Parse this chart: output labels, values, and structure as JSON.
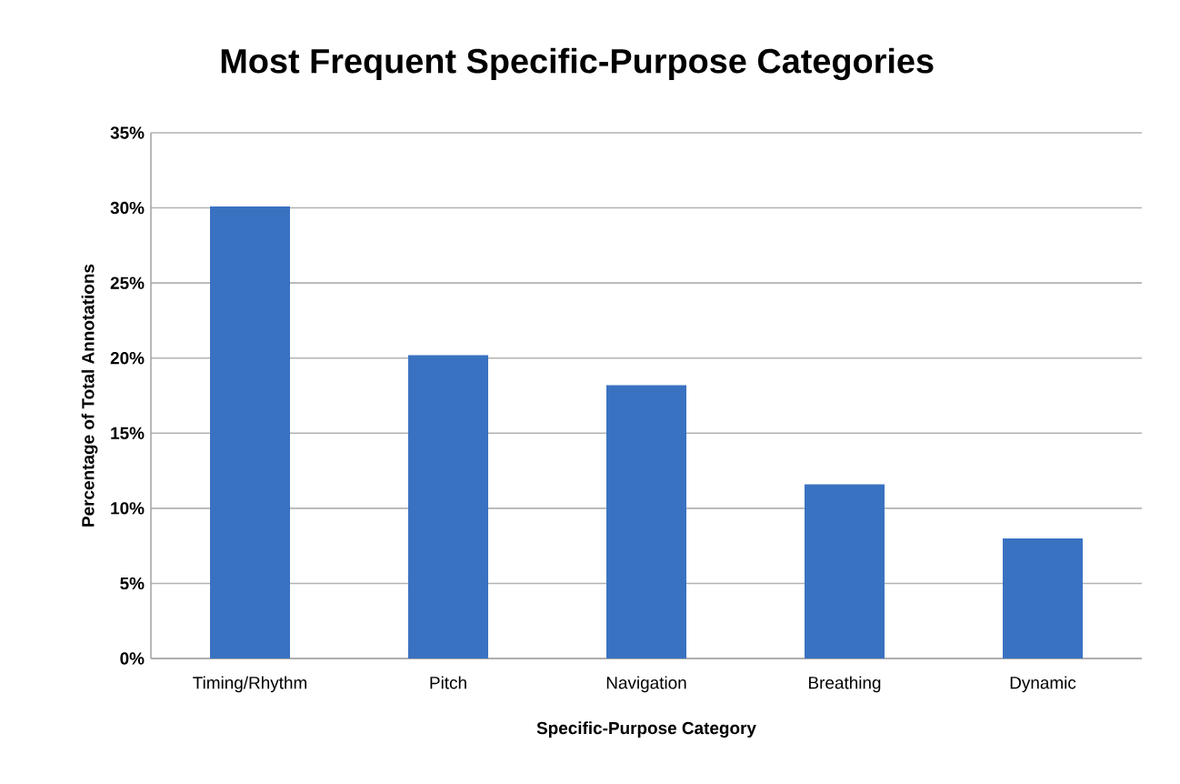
{
  "chart_data": {
    "type": "bar",
    "title": "Most Frequent Specific-Purpose Categories",
    "xlabel": "Specific-Purpose Category",
    "ylabel": "Percentage of Total Annotations",
    "categories": [
      "Timing/Rhythm",
      "Pitch",
      "Navigation",
      "Breathing",
      "Dynamic"
    ],
    "values": [
      30.1,
      20.2,
      18.2,
      11.6,
      8.0
    ],
    "color": "#3a72c2",
    "ylim": [
      0,
      35
    ],
    "yticks": [
      {
        "value": 0,
        "label": "0%"
      },
      {
        "value": 5,
        "label": "5%"
      },
      {
        "value": 10,
        "label": "10%"
      },
      {
        "value": 15,
        "label": "15%"
      },
      {
        "value": 20,
        "label": "20%"
      },
      {
        "value": 25,
        "label": "25%"
      },
      {
        "value": 30,
        "label": "30%"
      },
      {
        "value": 35,
        "label": "35%"
      }
    ],
    "grid": "y"
  }
}
